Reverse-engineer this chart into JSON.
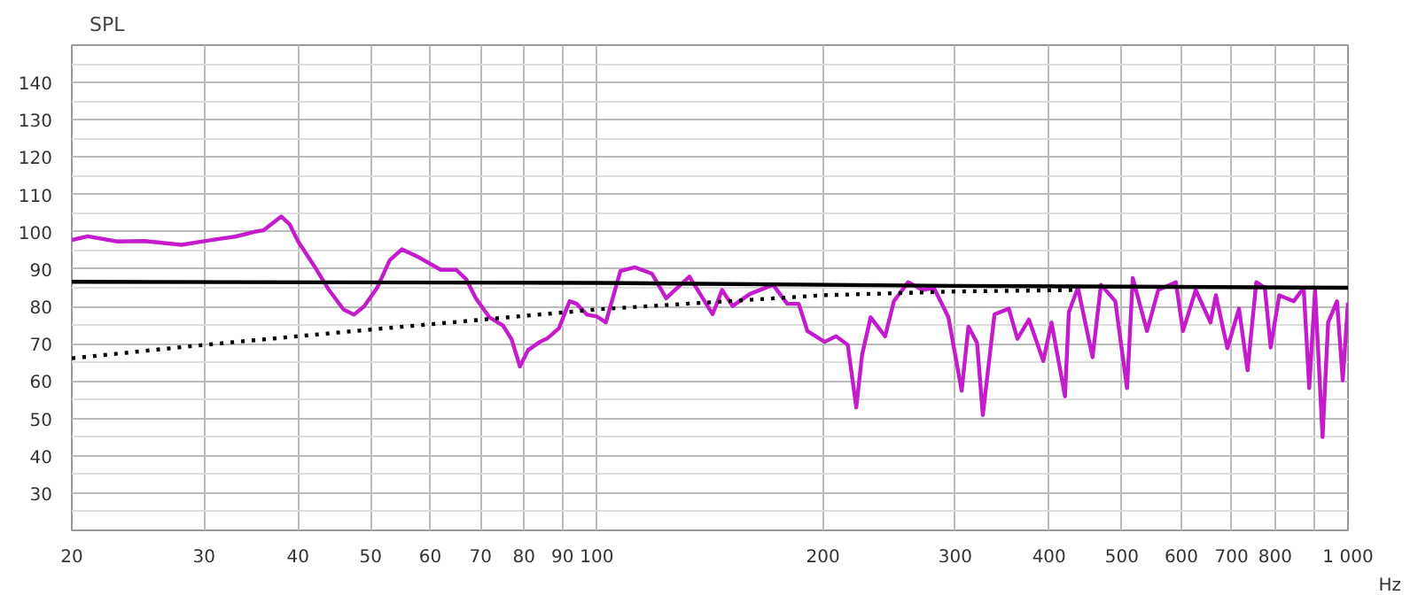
{
  "chart_data": {
    "type": "line",
    "xlabel": "Hz",
    "ylabel": "SPL",
    "log": "x",
    "grid": true,
    "xlim": [
      20,
      1000
    ],
    "ylim": [
      20,
      150
    ],
    "xticks": [
      20,
      30,
      40,
      50,
      60,
      70,
      80,
      90,
      100,
      200,
      300,
      400,
      500,
      600,
      700,
      800,
      {
        "value": 900,
        "label": null
      },
      {
        "value": 1000,
        "label": "1 000"
      }
    ],
    "yticks": [
      {
        "value": 25,
        "label": null
      },
      30,
      {
        "value": 35,
        "label": null
      },
      40,
      {
        "value": 45,
        "label": null
      },
      50,
      {
        "value": 55,
        "label": null
      },
      60,
      {
        "value": 65,
        "label": null
      },
      70,
      {
        "value": 75,
        "label": null
      },
      80,
      {
        "value": 85,
        "label": null
      },
      90,
      {
        "value": 95,
        "label": null
      },
      100,
      {
        "value": 105,
        "label": null
      },
      110,
      {
        "value": 115,
        "label": null
      },
      120,
      {
        "value": 125,
        "label": null
      },
      130,
      {
        "value": 135,
        "label": null
      },
      140,
      {
        "value": 145,
        "label": null
      }
    ],
    "series": [
      {
        "color": "#c41ccc",
        "line_style": "solid",
        "x": [
          20,
          21,
          23,
          25,
          28,
          30,
          33,
          35,
          36,
          38,
          39,
          40,
          42,
          44,
          46,
          47.5,
          49,
          51,
          53,
          55,
          58,
          62,
          65,
          67,
          69,
          72,
          75,
          77,
          79,
          81,
          84,
          86,
          89,
          92,
          94,
          97,
          100,
          102.8,
          107.5,
          112.3,
          118.4,
          123.7,
          132.8,
          142.6,
          146.8,
          151.6,
          159.8,
          171.6,
          179.3,
          185.7,
          190.7,
          201,
          208.2,
          215.8,
          221.5,
          225.5,
          231.5,
          242,
          248.6,
          259.7,
          271.4,
          281,
          293.8,
          306,
          312.4,
          320.8,
          326.5,
          338.4,
          353.6,
          363,
          376,
          393,
          403,
          420,
          425,
          437,
          457,
          469,
          490,
          508,
          517,
          540,
          559,
          590,
          603,
          627,
          656,
          667,
          691,
          716,
          735,
          755,
          775,
          789,
          810,
          847,
          873,
          888,
          904,
          925,
          941,
          967,
          984,
          1000
        ],
        "values": [
          97.8,
          98.8,
          97.4,
          97.5,
          96.5,
          97.5,
          98.7,
          100,
          100.4,
          104.1,
          102,
          97.5,
          91,
          84.4,
          79.2,
          77.8,
          80,
          85,
          92.4,
          95.3,
          93.1,
          89.8,
          89.8,
          87.3,
          82.2,
          77,
          74.9,
          71.2,
          63.9,
          68.3,
          70.5,
          71.5,
          74.1,
          81.4,
          80.7,
          77.8,
          77.3,
          75.7,
          89.5,
          90.5,
          88.8,
          82.2,
          88,
          77.9,
          84.4,
          80.1,
          83.3,
          85.8,
          80.7,
          80.7,
          73.4,
          70.5,
          72,
          69.7,
          52.9,
          67.1,
          77.1,
          72,
          81.4,
          86.5,
          84.4,
          85,
          77.1,
          57.4,
          74.6,
          70.2,
          50.9,
          77.9,
          79.4,
          71.3,
          76.5,
          65.4,
          75.7,
          55.9,
          78.5,
          85,
          66.4,
          85.8,
          81.4,
          58.1,
          87.6,
          73.4,
          84.4,
          86.5,
          73.4,
          84.4,
          75.7,
          83,
          68.8,
          79.4,
          62.9,
          86.5,
          85,
          69,
          83,
          81.4,
          85,
          58.1,
          84.4,
          45,
          75.7,
          81.4,
          60.2,
          81
        ]
      },
      {
        "color": "#000000",
        "line_style": "solid",
        "x": [
          20,
          100,
          300,
          1000
        ],
        "values": [
          86.6,
          86.3,
          85.5,
          85
        ]
      },
      {
        "color": "#000000",
        "line_style": "dotted",
        "x": [
          20,
          30,
          50,
          100,
          200,
          300,
          430
        ],
        "values": [
          66.1,
          69.7,
          73.8,
          79.2,
          83,
          84,
          84.4
        ]
      }
    ]
  }
}
